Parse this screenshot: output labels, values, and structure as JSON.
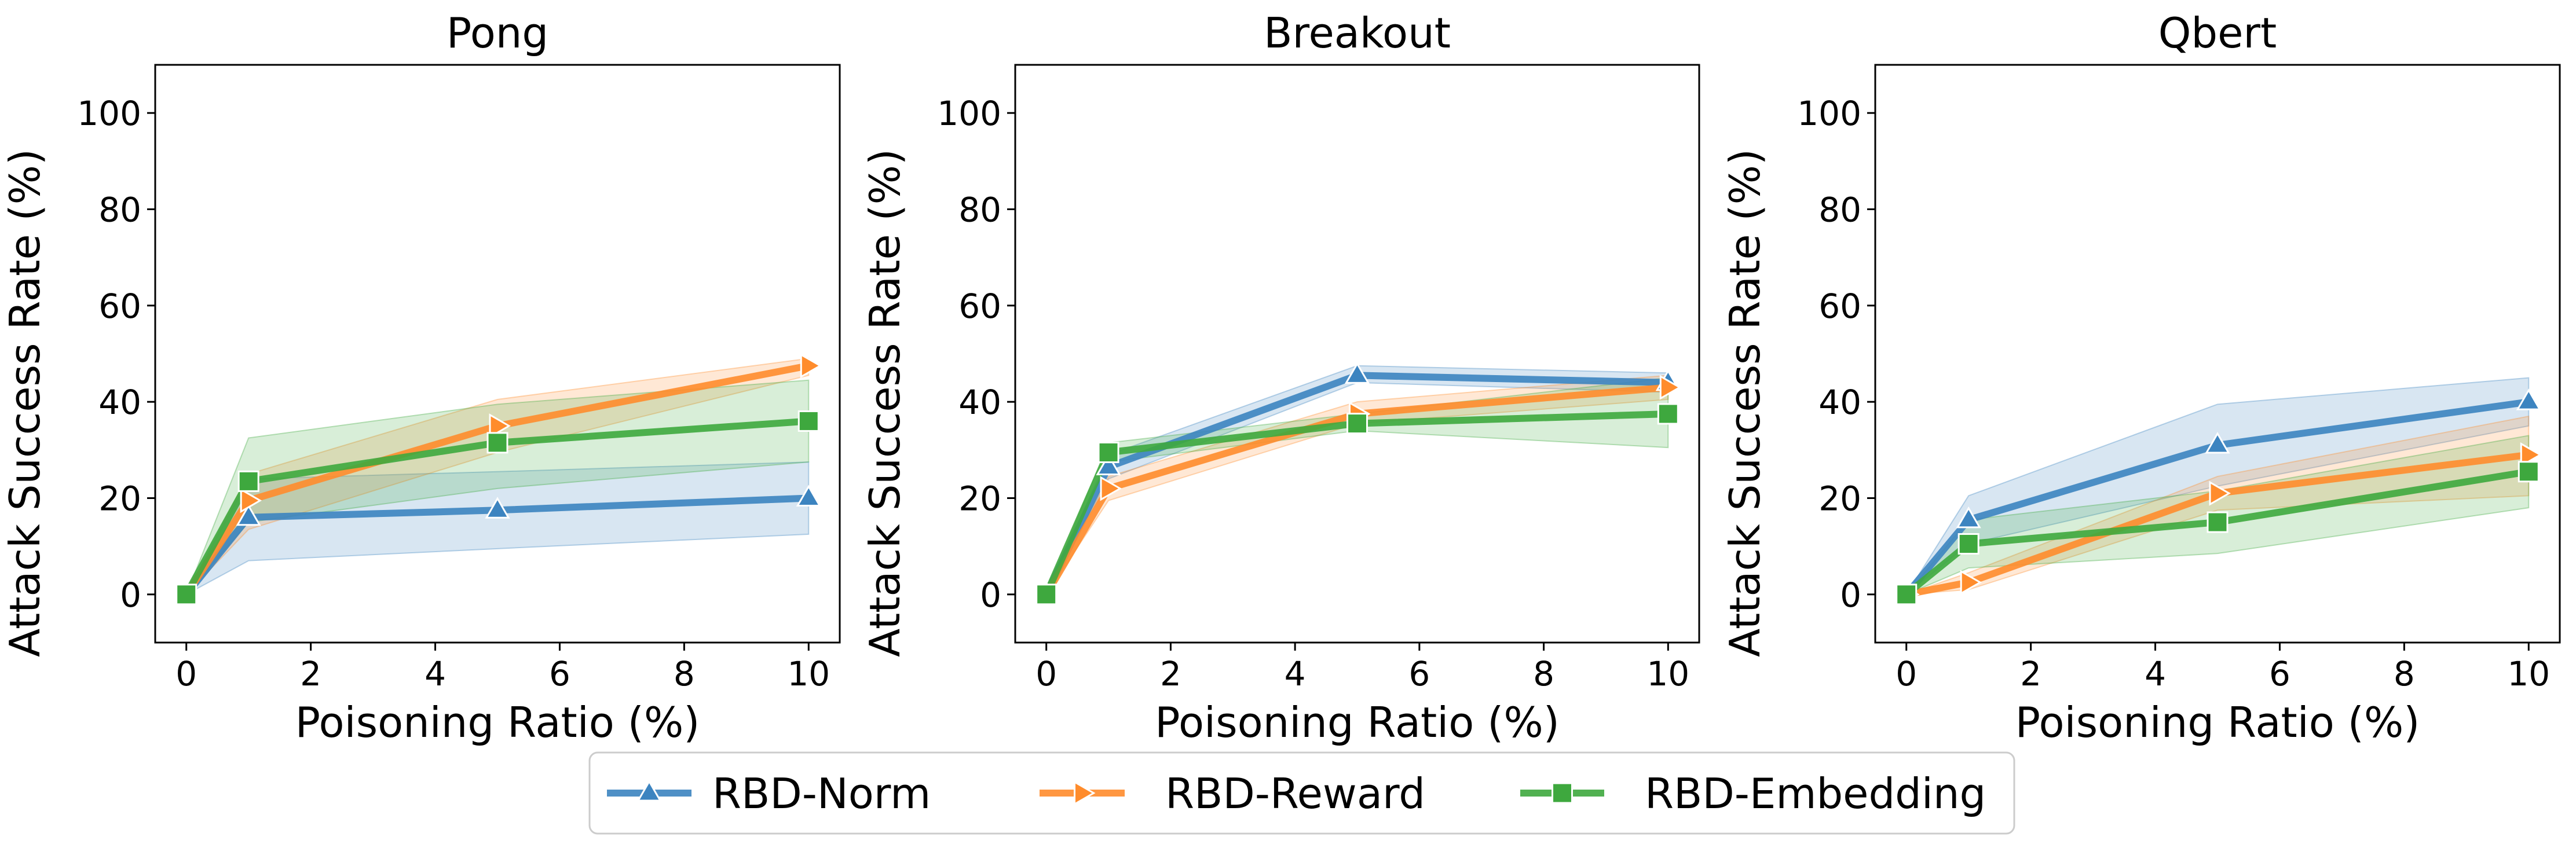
{
  "legend": {
    "entries": [
      {
        "label": "RBD-Norm",
        "color": "#3c84c0",
        "marker": "triangle-up"
      },
      {
        "label": "RBD-Reward",
        "color": "#ff8c2c",
        "marker": "triangle-right"
      },
      {
        "label": "RBD-Embedding",
        "color": "#3ea83e",
        "marker": "square"
      }
    ]
  },
  "chart_data": [
    {
      "type": "line",
      "title": "Pong",
      "xlabel": "Poisoning Ratio (%)",
      "ylabel": "Attack Success Rate (%)",
      "x": [
        0,
        1,
        5,
        10
      ],
      "xlim": [
        -0.5,
        10.5
      ],
      "ylim": [
        -10,
        110
      ],
      "xticks": [
        0,
        2,
        4,
        6,
        8,
        10
      ],
      "yticks": [
        0,
        20,
        40,
        60,
        80,
        100
      ],
      "series": [
        {
          "name": "RBD-Norm",
          "values": [
            0,
            16,
            17.5,
            20
          ],
          "lower": [
            0,
            7,
            9.5,
            12.5
          ],
          "upper": [
            0,
            24,
            25.5,
            27.5
          ]
        },
        {
          "name": "RBD-Reward",
          "values": [
            0,
            19.5,
            35,
            47.5
          ],
          "lower": [
            0,
            13.5,
            29.5,
            45.5
          ],
          "upper": [
            0,
            25,
            40.5,
            49
          ]
        },
        {
          "name": "RBD-Embedding",
          "values": [
            0,
            23.5,
            31.5,
            36
          ],
          "lower": [
            0,
            15,
            22,
            27.5
          ],
          "upper": [
            0,
            32.5,
            39.5,
            44.5
          ]
        }
      ]
    },
    {
      "type": "line",
      "title": "Breakout",
      "xlabel": "Poisoning Ratio (%)",
      "ylabel": "Attack Success Rate (%)",
      "x": [
        0,
        1,
        5,
        10
      ],
      "xlim": [
        -0.5,
        10.5
      ],
      "ylim": [
        -10,
        110
      ],
      "xticks": [
        0,
        2,
        4,
        6,
        8,
        10
      ],
      "yticks": [
        0,
        20,
        40,
        60,
        80,
        100
      ],
      "series": [
        {
          "name": "RBD-Norm",
          "values": [
            0,
            26.5,
            45.5,
            44
          ],
          "lower": [
            0,
            24,
            44,
            42
          ],
          "upper": [
            0,
            29,
            47.5,
            46
          ]
        },
        {
          "name": "RBD-Reward",
          "values": [
            0,
            22,
            37.5,
            43
          ],
          "lower": [
            0,
            19.5,
            35.5,
            40.5
          ],
          "upper": [
            0,
            24.5,
            40,
            45.5
          ]
        },
        {
          "name": "RBD-Embedding",
          "values": [
            0,
            29.5,
            35.5,
            37.5
          ],
          "lower": [
            0,
            27.5,
            34,
            30.5
          ],
          "upper": [
            0,
            31.5,
            37.5,
            45
          ]
        }
      ]
    },
    {
      "type": "line",
      "title": "Qbert",
      "xlabel": "Poisoning Ratio (%)",
      "ylabel": "Attack Success Rate (%)",
      "x": [
        0,
        1,
        5,
        10
      ],
      "xlim": [
        -0.5,
        10.5
      ],
      "ylim": [
        -10,
        110
      ],
      "xticks": [
        0,
        2,
        4,
        6,
        8,
        10
      ],
      "yticks": [
        0,
        20,
        40,
        60,
        80,
        100
      ],
      "series": [
        {
          "name": "RBD-Norm",
          "values": [
            0,
            15.5,
            31,
            40
          ],
          "lower": [
            0,
            10.5,
            22.5,
            35
          ],
          "upper": [
            0,
            20.5,
            39.5,
            45
          ]
        },
        {
          "name": "RBD-Reward",
          "values": [
            0,
            2.5,
            21,
            29
          ],
          "lower": [
            0,
            1,
            17.5,
            20.5
          ],
          "upper": [
            0,
            4.5,
            24.5,
            37
          ]
        },
        {
          "name": "RBD-Embedding",
          "values": [
            0,
            10.5,
            15,
            25.5
          ],
          "lower": [
            0,
            5.5,
            8.5,
            18
          ],
          "upper": [
            0,
            15.5,
            21.5,
            33
          ]
        }
      ]
    }
  ]
}
